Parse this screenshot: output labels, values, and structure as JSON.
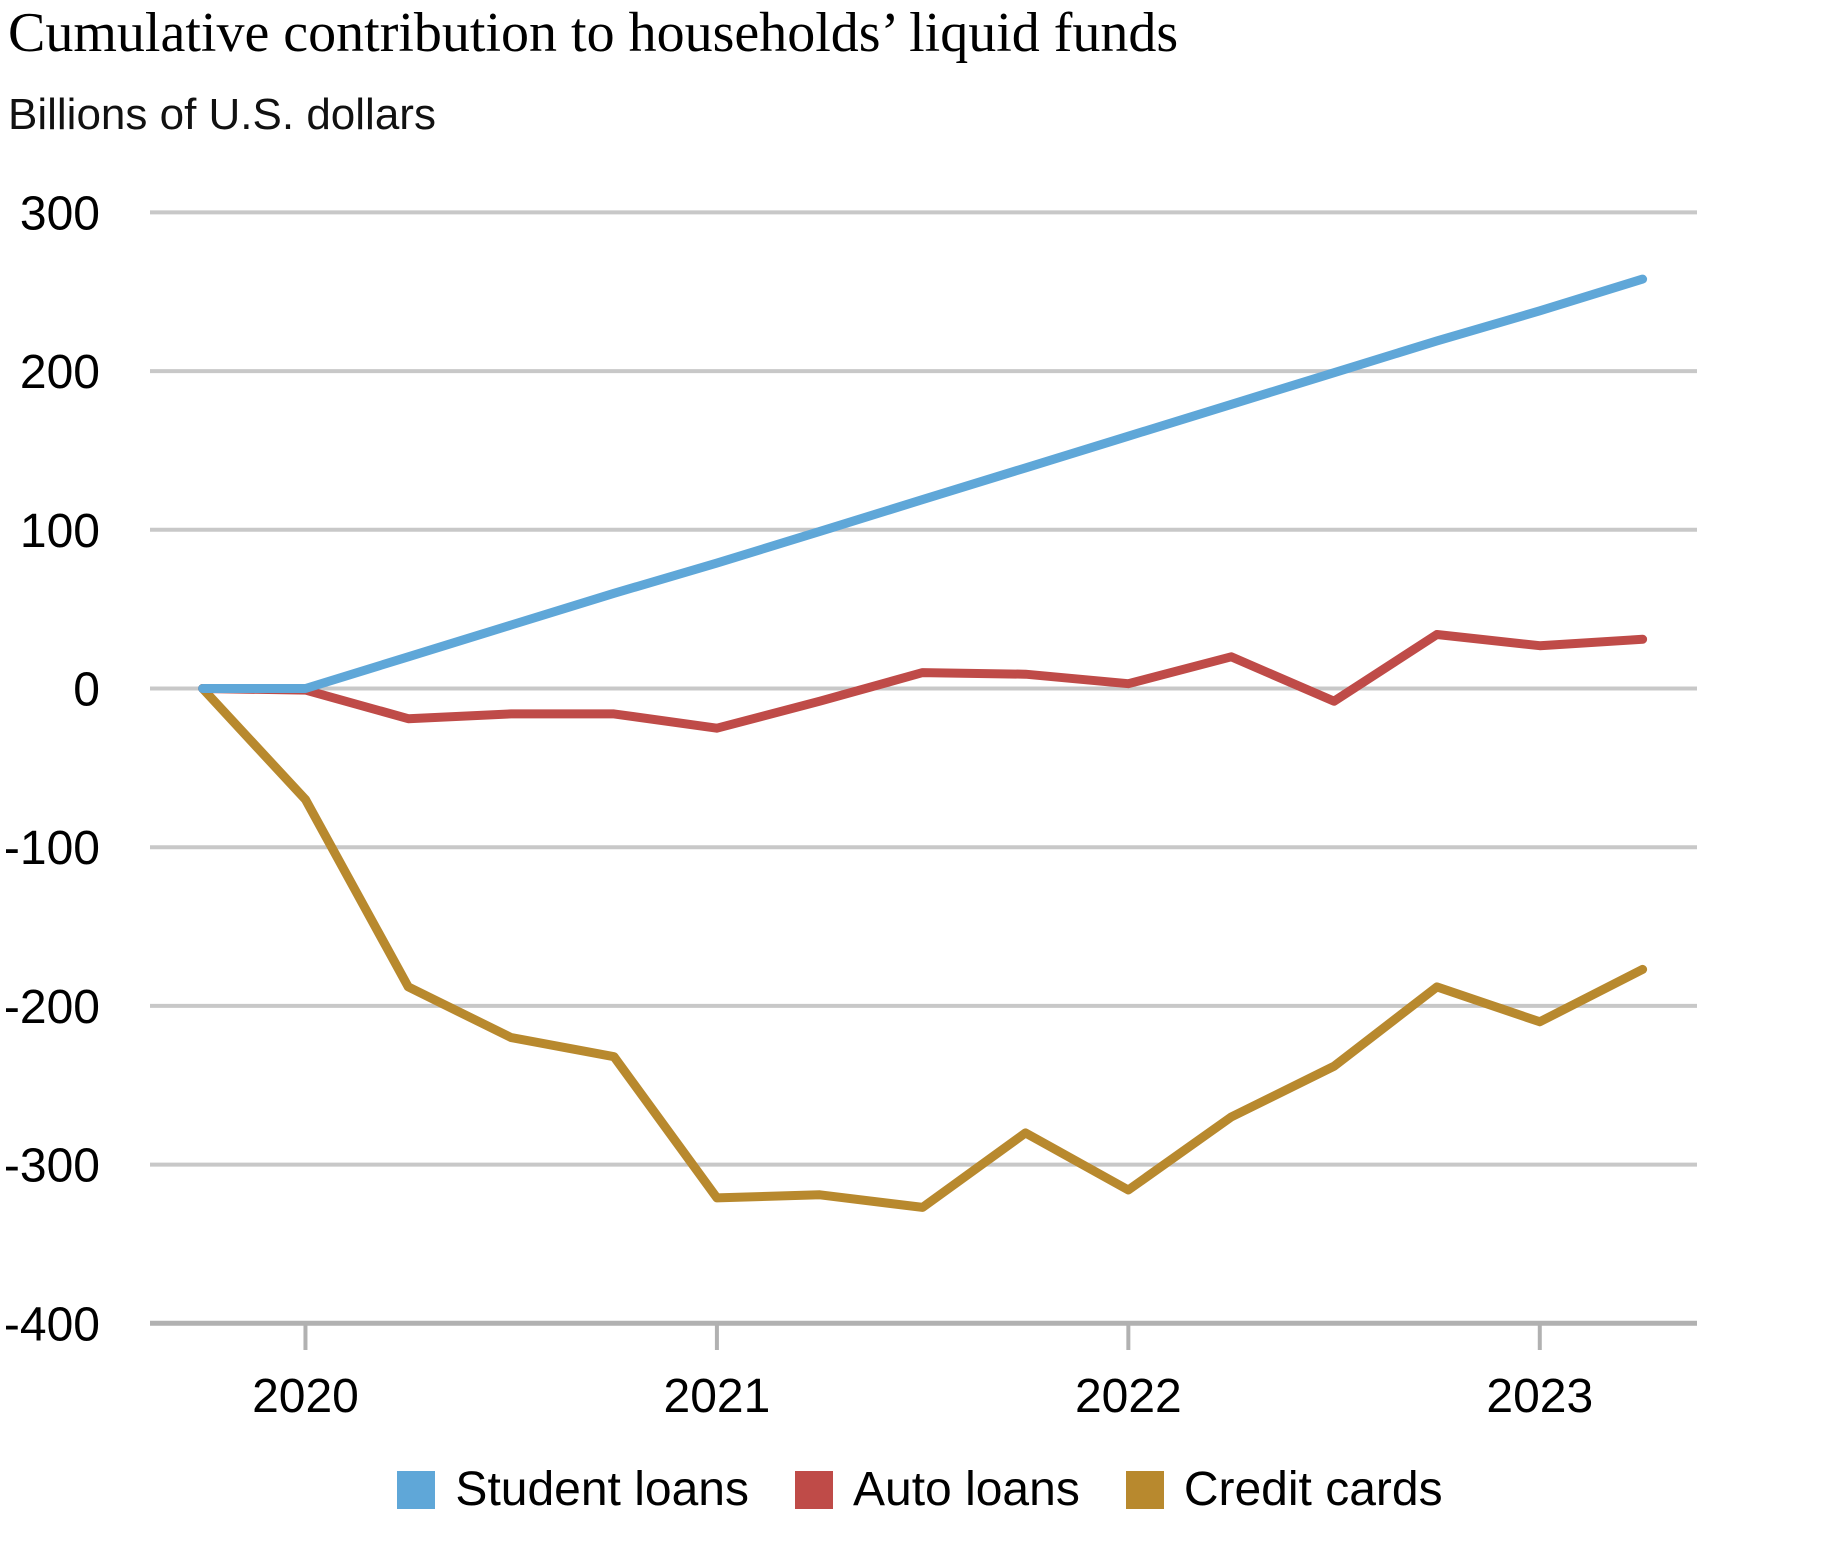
{
  "title": "Cumulative contribution to households’ liquid funds",
  "subtitle": "Billions of U.S. dollars",
  "chart_data": {
    "type": "line",
    "x": [
      "2019 Q4",
      "2020 Q1",
      "2020 Q2",
      "2020 Q3",
      "2020 Q4",
      "2021 Q1",
      "2021 Q2",
      "2021 Q3",
      "2021 Q4",
      "2022 Q1",
      "2022 Q2",
      "2022 Q3",
      "2022 Q4",
      "2023 Q1",
      "2023 Q2"
    ],
    "x_tick_labels": [
      "2020",
      "2021",
      "2022",
      "2023"
    ],
    "x_tick_positions": [
      1,
      5,
      9,
      13
    ],
    "y_ticks": [
      300,
      200,
      100,
      0,
      -100,
      -200,
      -300,
      -400
    ],
    "ylim": [
      -400,
      300
    ],
    "ylabel": "Billions of U.S. dollars",
    "grid": "horizontal",
    "legend_position": "bottom",
    "series": [
      {
        "name": "Student loans",
        "color": "#5fa7d8",
        "values": [
          0,
          0,
          20,
          40,
          60,
          79,
          99,
          119,
          139,
          159,
          179,
          199,
          219,
          238,
          258
        ]
      },
      {
        "name": "Auto loans",
        "color": "#bf4b48",
        "values": [
          0,
          -1,
          -19,
          -16,
          -16,
          -25,
          -8,
          10,
          9,
          3,
          20,
          -8,
          34,
          27,
          31
        ]
      },
      {
        "name": "Credit cards",
        "color": "#b8892e",
        "values": [
          0,
          -70,
          -188,
          -220,
          -232,
          -321,
          -319,
          -327,
          -280,
          -316,
          -270,
          -238,
          -188,
          -210,
          -177
        ]
      }
    ]
  },
  "colors": {
    "gridline": "#c8c8c8",
    "axis": "#b1b1b1",
    "text": "#000000"
  }
}
